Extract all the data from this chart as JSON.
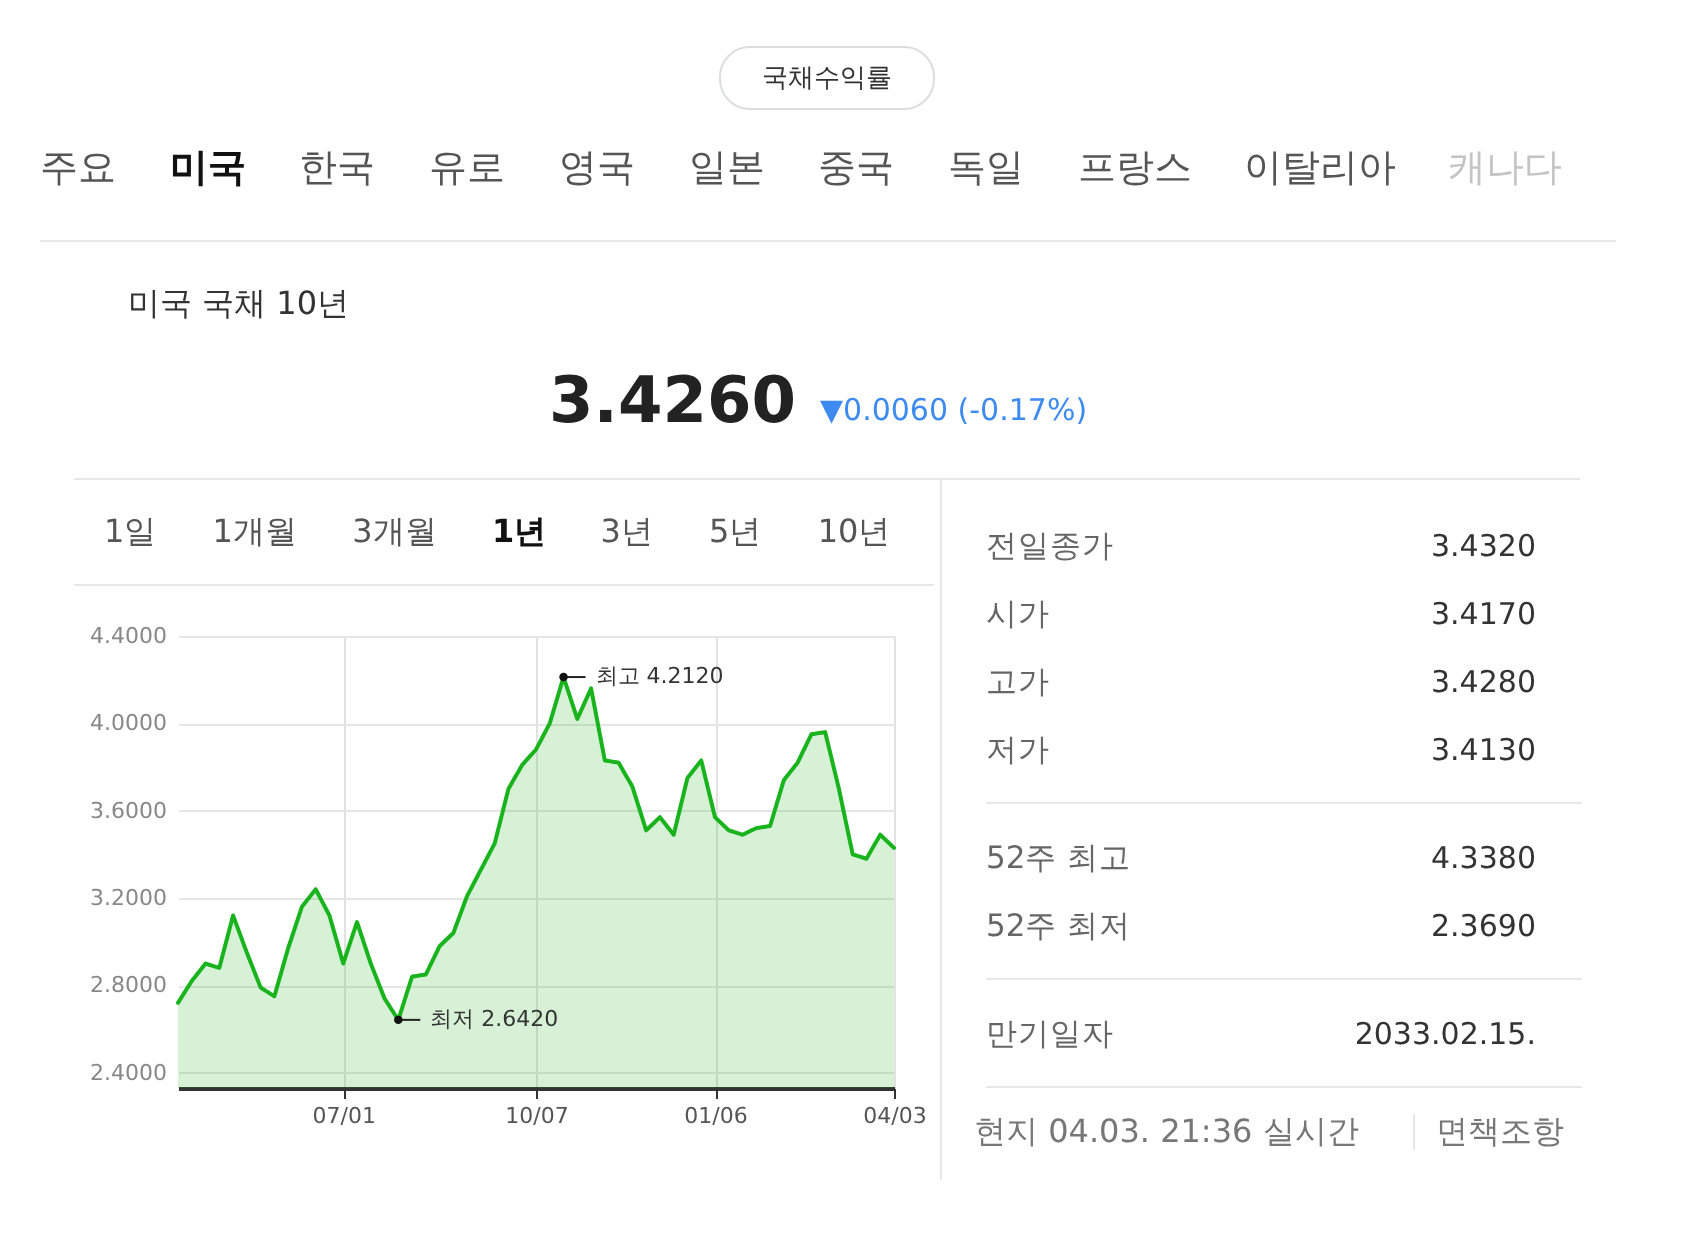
{
  "chart_data": [
    {
      "type": "other",
      "title": "국채수익률",
      "annotations": [
        "주요",
        "미국",
        "한국",
        "유로",
        "영국",
        "일본",
        "중국",
        "독일",
        "프랑스",
        "이탈리아",
        "캐나다"
      ]
    },
    {
      "type": "other",
      "title": "미국 국채 10년",
      "subtitle": "3.4260",
      "annotations": [
        "▼0.0060 (-0.17%)"
      ]
    },
    {
      "type": "other",
      "annotations": [
        "1일",
        "1개월",
        "3개월",
        "1년",
        "3년",
        "5년",
        "10년"
      ]
    },
    {
      "type": "area",
      "categories": [
        null,
        null,
        null,
        null,
        null,
        null,
        null,
        null,
        null,
        null,
        null,
        null,
        "07/01",
        null,
        null,
        null,
        null,
        null,
        null,
        null,
        null,
        null,
        null,
        null,
        null,
        null,
        "10/07",
        null,
        null,
        null,
        null,
        null,
        null,
        null,
        null,
        null,
        null,
        null,
        null,
        "01/06",
        null,
        null,
        null,
        null,
        null,
        null,
        null,
        null,
        null,
        null,
        null,
        null,
        "04/03"
      ],
      "series": [
        {
          "color": "#19b31e",
          "values": [
            2.72,
            2.82,
            2.9,
            2.88,
            3.12,
            2.95,
            2.79,
            2.75,
            2.97,
            3.16,
            3.24,
            3.12,
            2.9,
            3.09,
            2.9,
            2.74,
            2.642,
            2.84,
            2.85,
            2.98,
            3.04,
            3.21,
            3.33,
            3.45,
            3.7,
            3.81,
            3.88,
            4.0,
            4.212,
            4.02,
            4.16,
            3.83,
            3.82,
            3.71,
            3.51,
            3.57,
            3.49,
            3.75,
            3.83,
            3.57,
            3.51,
            3.49,
            3.52,
            3.53,
            3.74,
            3.82,
            3.95,
            3.96,
            3.7,
            3.4,
            3.38,
            3.49,
            3.43
          ]
        }
      ],
      "ylim": [
        2.33,
        4.4
      ],
      "yticks": [
        {
          "value": 2.4,
          "label": "2.4000"
        },
        {
          "value": 2.8,
          "label": "2.8000"
        },
        {
          "value": 3.2,
          "label": "3.2000"
        },
        {
          "value": 3.6,
          "label": "3.6000"
        },
        {
          "value": 4.0,
          "label": "4.0000"
        },
        {
          "value": 4.4,
          "label": "4.4000"
        }
      ],
      "grid": true,
      "annotations": [
        "최고 4.2120",
        "최저 2.6420"
      ]
    },
    {
      "type": "other",
      "annotations": [
        "전일종가",
        "3.4320",
        "시가",
        "3.4170",
        "고가",
        "3.4280",
        "저가",
        "3.4130",
        "52주 최고",
        "4.3380",
        "52주 최저",
        "2.3690",
        "만기일자",
        "2033.02.15.",
        "현지 04.03. 21:36 실시간",
        "면책조항"
      ]
    }
  ]
}
